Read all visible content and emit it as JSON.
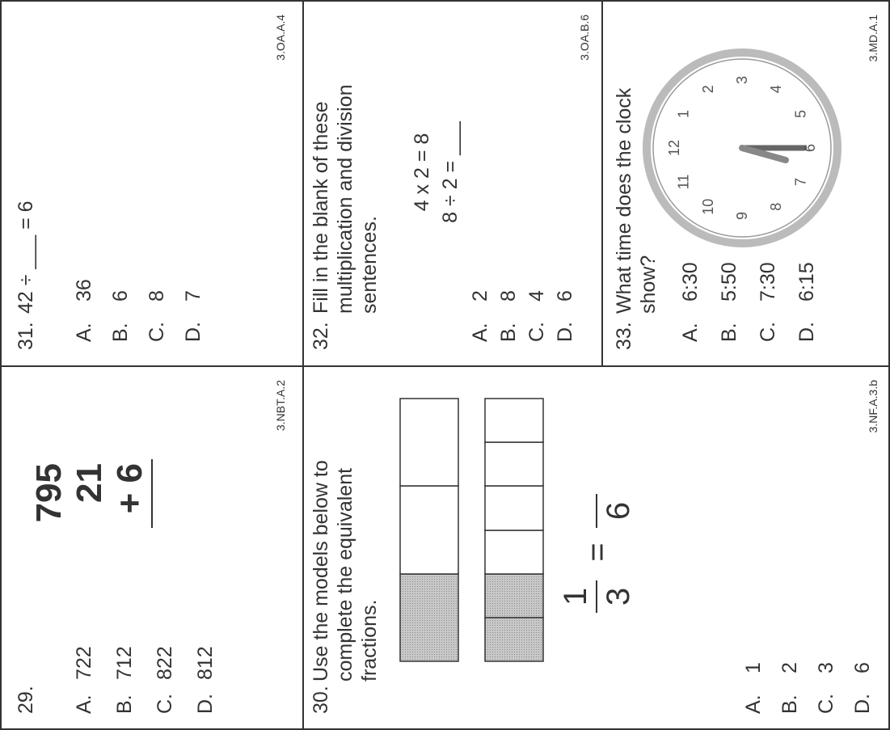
{
  "questions": [
    {
      "number": "29.",
      "problem": [
        "795",
        "21",
        "+ 6"
      ],
      "choices": [
        {
          "letter": "A.",
          "text": "722"
        },
        {
          "letter": "B.",
          "text": "712"
        },
        {
          "letter": "C.",
          "text": "822"
        },
        {
          "letter": "D.",
          "text": "812"
        }
      ],
      "standard": "3.NBT.A.2"
    },
    {
      "number": "30.",
      "prompt": [
        "Use the models below to",
        "complete the equivalent",
        "fractions."
      ],
      "fraction": {
        "left_numerator": "1",
        "left_denominator": "3",
        "equals": "=",
        "right_denominator": "6"
      },
      "choices": [
        {
          "letter": "A.",
          "text": "1"
        },
        {
          "letter": "B.",
          "text": "2"
        },
        {
          "letter": "C.",
          "text": "3"
        },
        {
          "letter": "D.",
          "text": "6"
        }
      ],
      "standard": "3.NF.A.3.b"
    },
    {
      "number": "31.",
      "prompt": [
        "42 ÷ ___ = 6"
      ],
      "choices": [
        {
          "letter": "A.",
          "text": "36"
        },
        {
          "letter": "B.",
          "text": "6"
        },
        {
          "letter": "C.",
          "text": "8"
        },
        {
          "letter": "D.",
          "text": "7"
        }
      ],
      "standard": "3.OA.A.4"
    },
    {
      "number": "32.",
      "prompt": [
        "Fill in the blank of these",
        "multiplication and division",
        "sentences."
      ],
      "equations": [
        "4 x 2 = 8",
        "8 ÷ 2 = ___"
      ],
      "choices": [
        {
          "letter": "A.",
          "text": "2"
        },
        {
          "letter": "B.",
          "text": "8"
        },
        {
          "letter": "C.",
          "text": "4"
        },
        {
          "letter": "D.",
          "text": "6"
        }
      ],
      "standard": "3.OA.B.6"
    },
    {
      "number": "33.",
      "prompt": [
        "What time does the clock",
        "show?"
      ],
      "clock_numbers": [
        "12",
        "1",
        "2",
        "3",
        "4",
        "5",
        "6",
        "7",
        "8",
        "9",
        "10",
        "11"
      ],
      "choices": [
        {
          "letter": "A.",
          "text": "6:30"
        },
        {
          "letter": "B.",
          "text": "5:50"
        },
        {
          "letter": "C.",
          "text": "7:30"
        },
        {
          "letter": "D.",
          "text": "6:15"
        }
      ],
      "standard": "3.MD.A.1"
    }
  ]
}
